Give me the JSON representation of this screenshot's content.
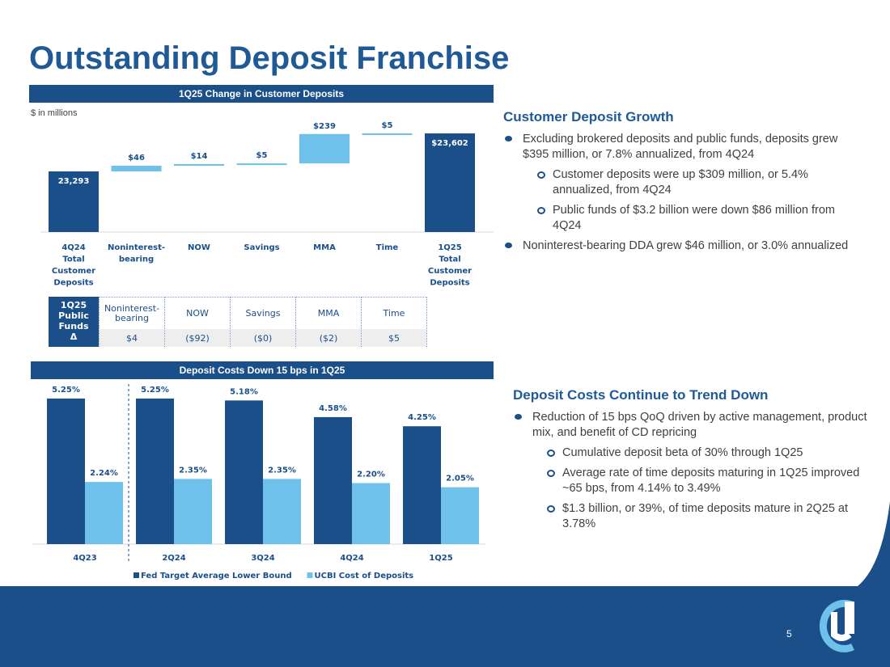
{
  "page": {
    "title": "Outstanding Deposit Franchise",
    "page_number": "5"
  },
  "colors": {
    "dark_blue": "#1a4f8a",
    "light_blue": "#6ec1ea",
    "title_blue": "#1f5a96"
  },
  "top_chart": {
    "header": "1Q25 Change in Customer Deposits",
    "units_note": "$ in millions"
  },
  "bottom_chart": {
    "header": "Deposit Costs Down 15 bps in 1Q25"
  },
  "chart_data": [
    {
      "type": "bar",
      "subtype": "waterfall",
      "title": "1Q25 Change in Customer Deposits",
      "categories": [
        "4Q24\nTotal\nCustomer\nDeposits",
        "Noninterest-\nbearing",
        "NOW",
        "Savings",
        "MMA",
        "Time",
        "1Q25\nTotal\nCustomer\nDeposits"
      ],
      "values": [
        23293,
        46,
        14,
        5,
        239,
        5,
        23602
      ],
      "data_labels": [
        "23,293",
        "$46",
        "$14",
        "$5",
        "$239",
        "$5",
        "$23,602"
      ],
      "kinds": [
        "total",
        "delta",
        "delta",
        "delta",
        "delta",
        "delta",
        "total"
      ]
    },
    {
      "type": "table",
      "title": "1Q25\nPublic\nFunds\nΔ",
      "columns": [
        "Noninterest-\nbearing",
        "NOW",
        "Savings",
        "MMA",
        "Time"
      ],
      "values": [
        "$4",
        "($92)",
        "($0)",
        "($2)",
        "$5"
      ]
    },
    {
      "type": "bar",
      "title": "Deposit Costs Down 15 bps in 1Q25",
      "categories": [
        "4Q23",
        "2Q24",
        "3Q24",
        "4Q24",
        "1Q25"
      ],
      "series": [
        {
          "name": "Fed Target Average Lower Bound",
          "values": [
            5.25,
            5.25,
            5.18,
            4.58,
            4.25
          ],
          "labels": [
            "5.25%",
            "5.25%",
            "5.18%",
            "4.58%",
            "4.25%"
          ],
          "color": "#1a4f8a"
        },
        {
          "name": "UCBI Cost of Deposits",
          "values": [
            2.24,
            2.35,
            2.35,
            2.2,
            2.05
          ],
          "labels": [
            "2.24%",
            "2.35%",
            "2.35%",
            "2.20%",
            "2.05%"
          ],
          "color": "#6ec1ea"
        }
      ],
      "legend": "bottom"
    }
  ],
  "right_top": {
    "heading": "Customer Deposit Growth",
    "bullets": [
      {
        "level": 1,
        "text": "Excluding brokered deposits and public funds, deposits grew $395 million, or 7.8% annualized, from 4Q24"
      },
      {
        "level": 2,
        "text": "Customer deposits were up $309 million, or 5.4% annualized, from 4Q24"
      },
      {
        "level": 2,
        "text": "Public funds of $3.2 billion were down $86 million from 4Q24"
      },
      {
        "level": 1,
        "text": "Noninterest-bearing DDA grew $46 million, or 3.0% annualized"
      }
    ]
  },
  "right_bottom": {
    "heading": "Deposit Costs Continue to Trend Down",
    "bullets": [
      {
        "level": 1,
        "text": "Reduction of 15 bps QoQ driven by active management, product mix, and benefit of CD repricing"
      },
      {
        "level": 2,
        "text": "Cumulative deposit beta of 30% through 1Q25"
      },
      {
        "level": 2,
        "text": "Average rate of time deposits maturing in 1Q25 improved ~65 bps, from 4.14% to 3.49%"
      },
      {
        "level": 2,
        "text": "$1.3 billion, or 39%, of time deposits mature in 2Q25 at 3.78%"
      }
    ]
  }
}
